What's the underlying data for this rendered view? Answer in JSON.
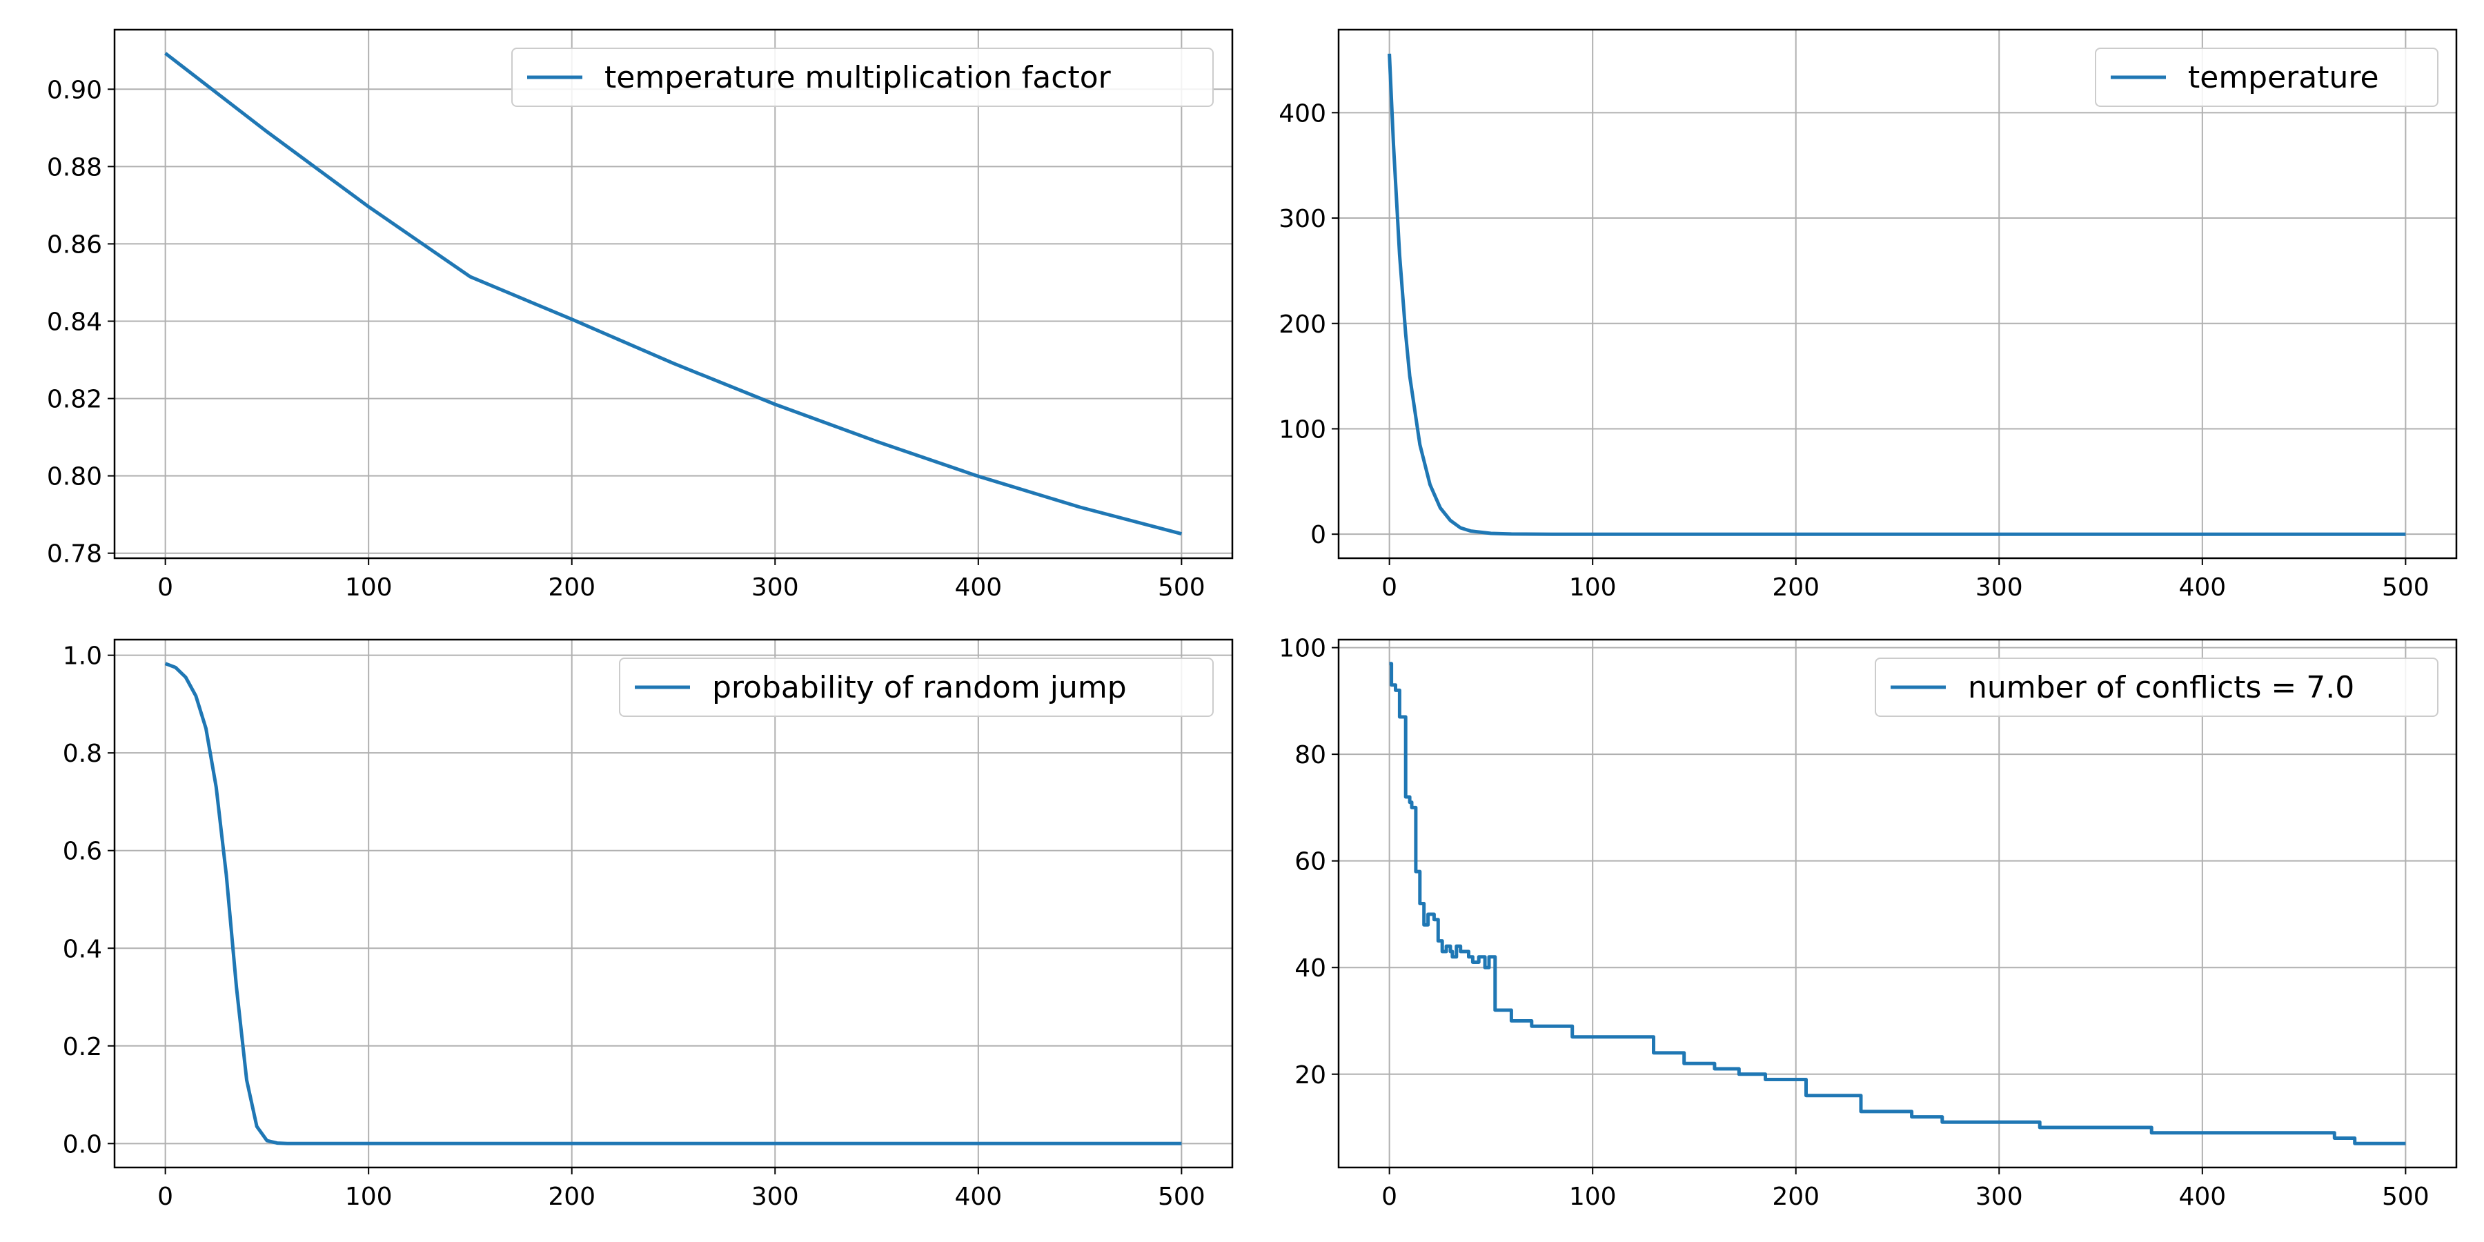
{
  "chart_data": [
    {
      "type": "line",
      "title": "",
      "xlabel": "",
      "ylabel": "",
      "xlim": [
        -25,
        525
      ],
      "ylim": [
        0.7787,
        0.9154
      ],
      "xticks": [
        0,
        100,
        200,
        300,
        400,
        500
      ],
      "yticks": [
        0.78,
        0.8,
        0.82,
        0.84,
        0.86,
        0.88,
        0.9
      ],
      "ytick_format": "2",
      "grid": true,
      "legend_position": "upper right",
      "color": "#1f77b4",
      "series": [
        {
          "name": "temperature multiplication factor",
          "x": [
            0,
            50,
            100,
            150,
            200,
            250,
            300,
            350,
            400,
            450,
            500
          ],
          "y": [
            0.9093,
            0.889,
            0.8696,
            0.8515,
            0.8405,
            0.8291,
            0.8185,
            0.8089,
            0.7999,
            0.7919,
            0.785
          ]
        }
      ]
    },
    {
      "type": "line",
      "title": "",
      "xlabel": "",
      "ylabel": "",
      "xlim": [
        -25,
        525
      ],
      "ylim": [
        -22.8,
        478.8
      ],
      "xticks": [
        0,
        100,
        200,
        300,
        400,
        500
      ],
      "yticks": [
        0,
        100,
        200,
        300,
        400
      ],
      "ytick_format": "0",
      "grid": true,
      "legend_position": "upper right",
      "color": "#1f77b4",
      "series": [
        {
          "name": "temperature",
          "x": [
            0,
            2,
            5,
            8,
            10,
            15,
            20,
            25,
            30,
            35,
            40,
            50,
            60,
            80,
            100,
            500
          ],
          "y": [
            456,
            370,
            265,
            190,
            150,
            85,
            47,
            25,
            13,
            6,
            3,
            0.8,
            0.2,
            0,
            0,
            0
          ]
        }
      ]
    },
    {
      "type": "line",
      "title": "",
      "xlabel": "",
      "ylabel": "",
      "xlim": [
        -25,
        525
      ],
      "ylim": [
        -0.049,
        1.032
      ],
      "xticks": [
        0,
        100,
        200,
        300,
        400,
        500
      ],
      "yticks": [
        0.0,
        0.2,
        0.4,
        0.6,
        0.8,
        1.0
      ],
      "ytick_format": "1",
      "grid": true,
      "legend_position": "upper right",
      "color": "#1f77b4",
      "series": [
        {
          "name": "probability of random jump",
          "x": [
            0,
            5,
            10,
            15,
            20,
            25,
            30,
            35,
            40,
            45,
            50,
            55,
            60,
            100,
            500
          ],
          "y": [
            0.983,
            0.975,
            0.955,
            0.917,
            0.85,
            0.73,
            0.55,
            0.32,
            0.13,
            0.035,
            0.006,
            0.001,
            0,
            0,
            0
          ]
        }
      ]
    },
    {
      "type": "line",
      "title": "",
      "xlabel": "",
      "ylabel": "",
      "xlim": [
        -25,
        525
      ],
      "ylim": [
        2.5,
        101.5
      ],
      "xticks": [
        0,
        100,
        200,
        300,
        400,
        500
      ],
      "yticks": [
        20,
        40,
        60,
        80,
        100
      ],
      "ytick_format": "0",
      "grid": true,
      "legend_position": "upper right",
      "color": "#1f77b4",
      "step": true,
      "series": [
        {
          "name": "number of conflicts = 7.0",
          "x": [
            0,
            1,
            3,
            5,
            8,
            10,
            11,
            13,
            15,
            17,
            19,
            21,
            22,
            24,
            26,
            28,
            30,
            31,
            33,
            35,
            37,
            39,
            41,
            44,
            47,
            49,
            52,
            60,
            70,
            90,
            130,
            145,
            160,
            172,
            185,
            205,
            215,
            232,
            257,
            272,
            320,
            375,
            465,
            475,
            500
          ],
          "y": [
            97,
            93,
            92,
            87,
            72,
            71,
            70,
            58,
            52,
            48,
            50,
            50,
            49,
            45,
            43,
            44,
            43,
            42,
            44,
            43,
            43,
            42,
            41,
            42,
            40,
            42,
            32,
            30,
            29,
            27,
            24,
            22,
            21,
            20,
            19,
            16,
            16,
            13,
            12,
            11,
            10,
            9,
            8,
            7,
            7
          ]
        }
      ]
    }
  ]
}
